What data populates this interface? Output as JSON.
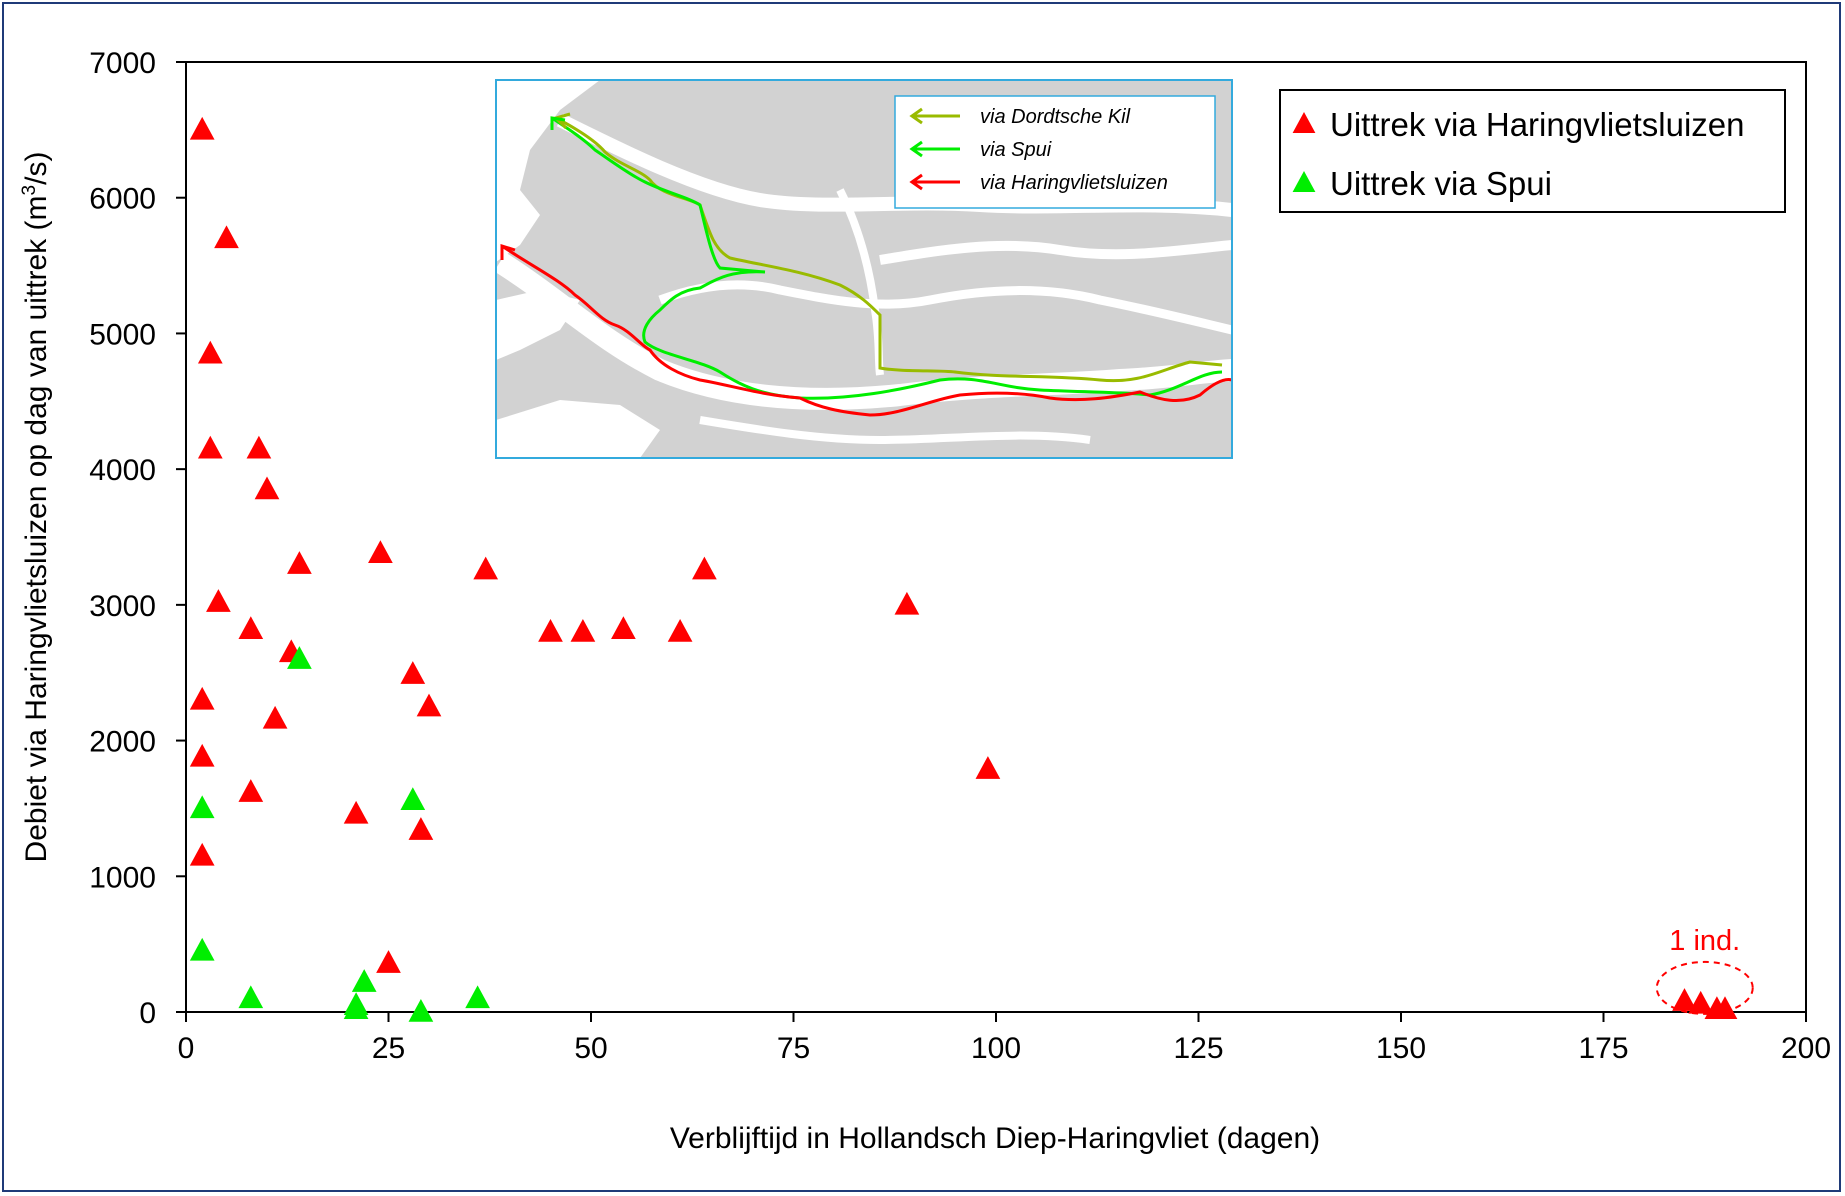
{
  "chart_data": {
    "type": "scatter",
    "xlabel": "Verblijftijd in Hollandsch Diep-Haringvliet (dagen)",
    "ylabel_main": "Debiet via Haringvlietsluizen op dag van uittrek (m",
    "ylabel_sup": "3",
    "ylabel_end": "/s)",
    "xlim": [
      0,
      200
    ],
    "ylim": [
      0,
      7000
    ],
    "xticks": [
      0,
      25,
      50,
      75,
      100,
      125,
      150,
      175,
      200
    ],
    "yticks": [
      0,
      1000,
      2000,
      3000,
      4000,
      5000,
      6000,
      7000
    ],
    "grid": false,
    "legend_position": "top-right",
    "series": [
      {
        "name": "Uittrek via Haringvlietsluizen",
        "color": "#ff0000",
        "marker": "triangle",
        "x": [
          2,
          5,
          3,
          3,
          9,
          10,
          14,
          24,
          4,
          8,
          13,
          2,
          11,
          2,
          8,
          21,
          2,
          37,
          45,
          49,
          54,
          61,
          64,
          89,
          28,
          30,
          29,
          25,
          99,
          185,
          187,
          189,
          190
        ],
        "y": [
          6500,
          5700,
          4850,
          4150,
          4150,
          3850,
          3300,
          3380,
          3020,
          2820,
          2650,
          2300,
          2160,
          1880,
          1620,
          1460,
          1150,
          3260,
          2800,
          2800,
          2820,
          2800,
          3260,
          3000,
          2490,
          2250,
          1340,
          360,
          1790,
          80,
          60,
          20,
          20
        ]
      },
      {
        "name": "Uittrek via Spui",
        "color": "#00ee00",
        "marker": "triangle",
        "x": [
          14,
          2,
          28,
          2,
          8,
          21,
          21,
          22,
          29,
          36
        ],
        "y": [
          2600,
          1500,
          1560,
          450,
          100,
          50,
          20,
          220,
          0,
          100
        ]
      }
    ],
    "annotation": {
      "text": "1 ind.",
      "color": "#ff0000",
      "x": 187.5,
      "y": 30
    }
  },
  "inset_map": {
    "legend": [
      {
        "label": "via Dordtsche Kil",
        "color": "#99bb00"
      },
      {
        "label": "via Spui",
        "color": "#00ee00"
      },
      {
        "label": "via Haringvlietsluizen",
        "color": "#ff0000"
      }
    ]
  }
}
